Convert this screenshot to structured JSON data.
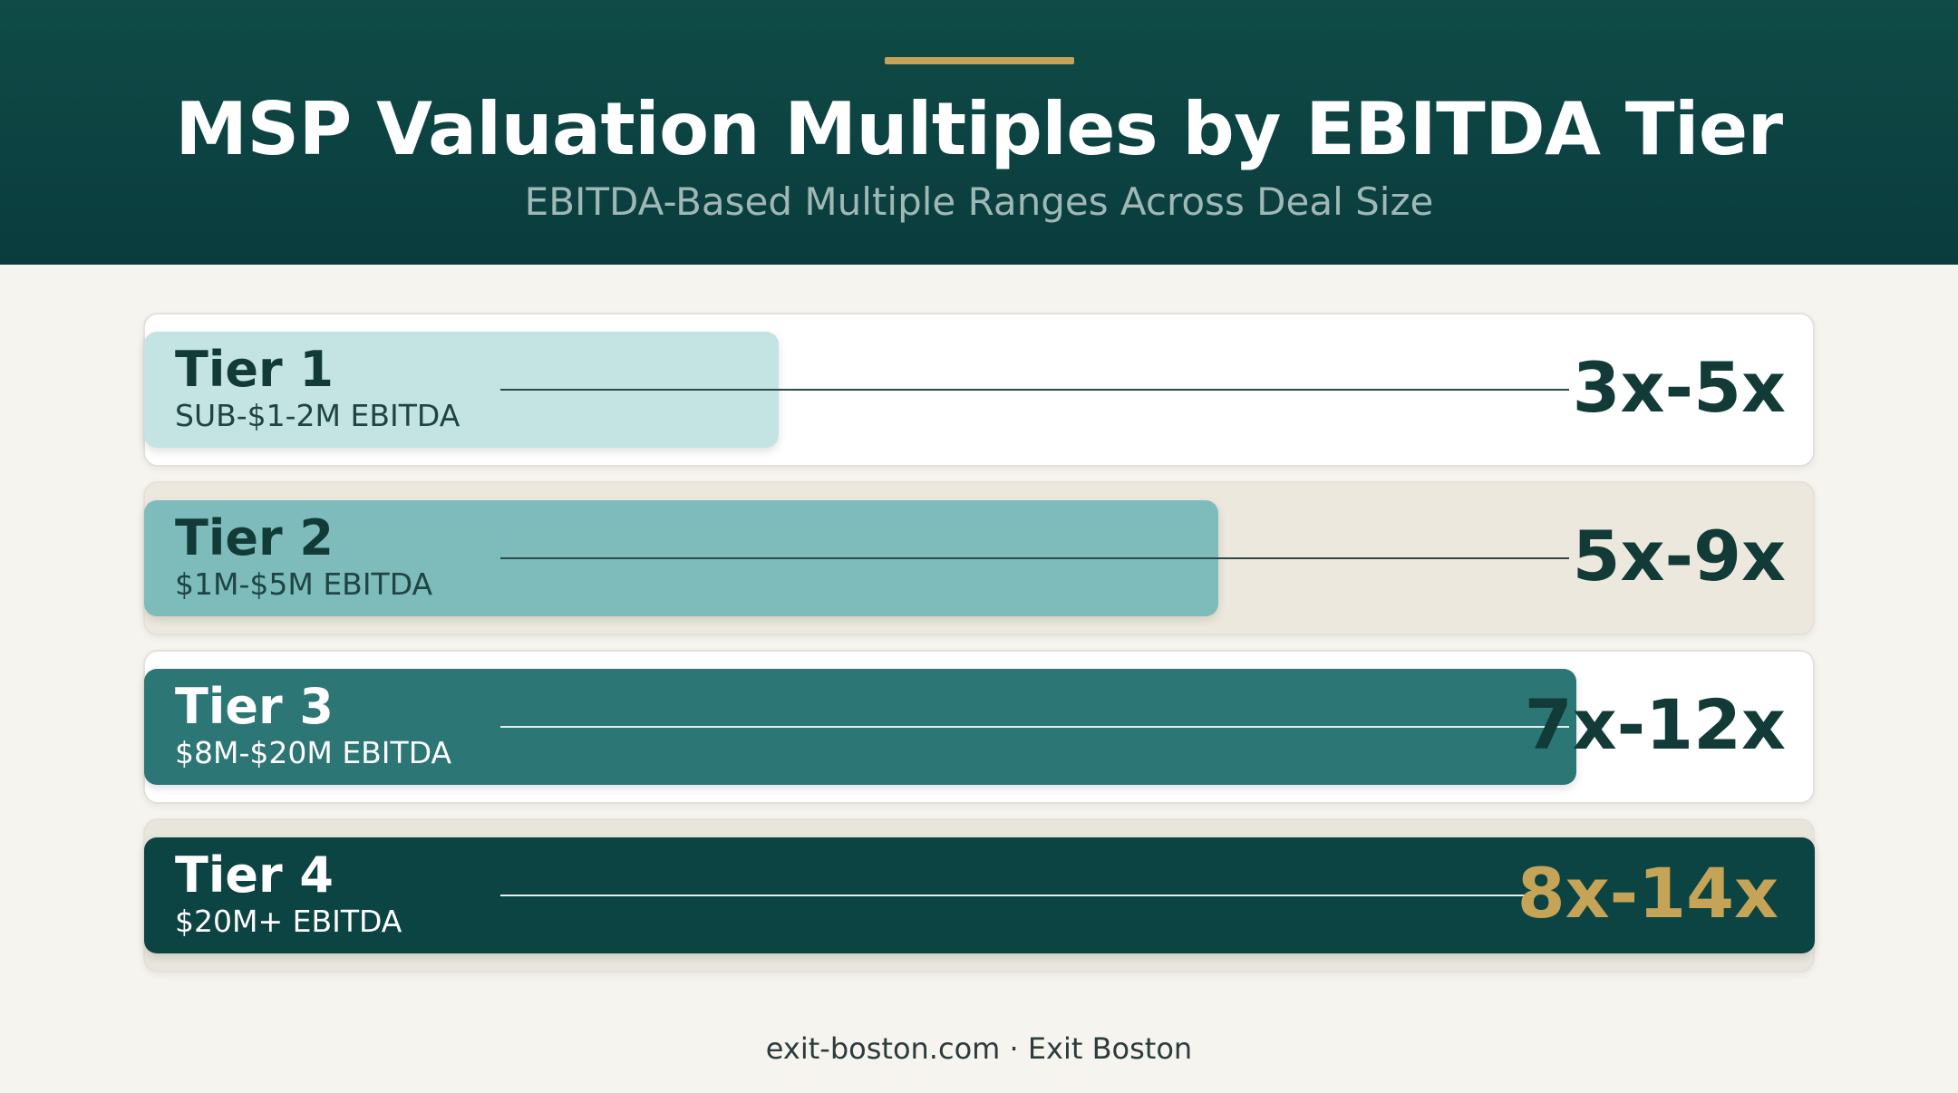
{
  "header": {
    "title": "MSP Valuation Multiples by EBITDA Tier",
    "subtitle": "EBITDA-Based Multiple Ranges Across Deal Size"
  },
  "colors": {
    "header_bg": "#0c4443",
    "accent_gold": "#c6a457",
    "page_bg": "#f5f4ef",
    "text_dark": "#123b38"
  },
  "chart_data": {
    "type": "bar",
    "orientation": "horizontal",
    "title": "MSP Valuation Multiples by EBITDA Tier",
    "subtitle": "EBITDA-Based Multiple Ranges Across Deal Size",
    "categories": [
      "Tier 1",
      "Tier 2",
      "Tier 3",
      "Tier 4"
    ],
    "tiers": [
      {
        "name": "Tier 1",
        "range": "SUB-$1-2M EBITDA",
        "multiple": "3x-5x",
        "low": 3,
        "high": 5,
        "bar_color": "#c4e3e3",
        "row_bg": "#ffffff",
        "name_color": "#123b38",
        "range_color": "#1e4544",
        "multiple_color": "#123b38",
        "leader_color": "#2b4a48"
      },
      {
        "name": "Tier 2",
        "range": "$1M-$5M EBITDA",
        "multiple": "5x-9x",
        "low": 5,
        "high": 9,
        "bar_color": "#7dbcbb",
        "row_bg": "#ece8dd",
        "name_color": "#123b38",
        "range_color": "#1e4544",
        "multiple_color": "#123b38",
        "leader_color": "#2b4a48"
      },
      {
        "name": "Tier 3",
        "range": "$8M-$20M EBITDA",
        "multiple": "7x-12x",
        "low": 7,
        "high": 12,
        "bar_color": "#2c7676",
        "row_bg": "#ffffff",
        "name_color": "#ffffff",
        "range_color": "#ffffff",
        "multiple_color": "#123b38",
        "leader_color": "#e6efee"
      },
      {
        "name": "Tier 4",
        "range": "$20M+ EBITDA",
        "multiple": "8x-14x",
        "low": 8,
        "high": 14,
        "bar_color": "#0c4443",
        "row_bg": "#e8e5dc",
        "name_color": "#ffffff",
        "range_color": "#ffffff",
        "multiple_color": "#c6a457",
        "leader_color": "#e6efee"
      }
    ],
    "xlim": [
      0,
      14
    ],
    "grid": false,
    "legend": "none"
  },
  "footer": "exit-boston.com · Exit Boston"
}
